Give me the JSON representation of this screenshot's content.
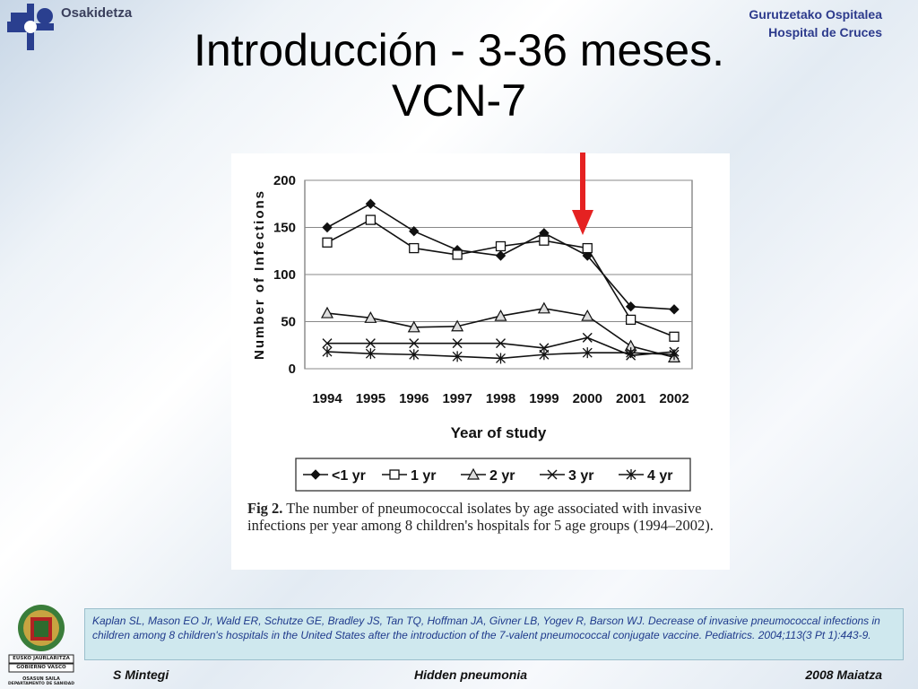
{
  "header": {
    "brand": "Osakidetza",
    "hospital_line1": "Gurutzetako Ospitalea",
    "hospital_line2": "Hospital de Cruces"
  },
  "slide": {
    "title_line1": "Introducción - 3-36 meses.",
    "title_line2": "VCN-7"
  },
  "figure": {
    "caption_label": "Fig 2.",
    "caption_text": "The number of pneumococcal isolates by age associated with invasive infections per year among 8 children's hospitals for 5 age groups (1994–2002)."
  },
  "chart_data": {
    "type": "line",
    "xlabel": "Year of study",
    "ylabel": "Number of Infections",
    "categories": [
      "1994",
      "1995",
      "1996",
      "1997",
      "1998",
      "1999",
      "2000",
      "2001",
      "2002"
    ],
    "yticks": [
      "0",
      "50",
      "100",
      "150",
      "200"
    ],
    "ylim": [
      0,
      200
    ],
    "grid": true,
    "legend_position": "bottom",
    "series": [
      {
        "name": "<1 yr",
        "marker": "diamond-filled",
        "values": [
          150,
          175,
          146,
          126,
          120,
          144,
          120,
          66,
          63
        ]
      },
      {
        "name": "1 yr",
        "marker": "square-open",
        "values": [
          134,
          158,
          128,
          121,
          130,
          136,
          128,
          52,
          34
        ]
      },
      {
        "name": "2 yr",
        "marker": "triangle-open",
        "values": [
          59,
          54,
          44,
          45,
          56,
          64,
          56,
          24,
          12
        ]
      },
      {
        "name": "3 yr",
        "marker": "x",
        "values": [
          27,
          27,
          27,
          27,
          27,
          22,
          33,
          14,
          18
        ]
      },
      {
        "name": "4 yr",
        "marker": "star",
        "values": [
          18,
          16,
          15,
          13,
          11,
          15,
          17,
          17,
          15
        ]
      }
    ],
    "annotation": {
      "type": "arrow",
      "color": "#e52222",
      "points_to_category": "2000"
    }
  },
  "reference": {
    "text": "Kaplan SL, Mason EO Jr, Wald ER, Schutze GE, Bradley JS, Tan TQ, Hoffman JA, Givner LB, Yogev R, Barson WJ. Decrease of invasive pneumococcal infections in children among 8 children's hospitals in the United States after the introduction of the 7-valent pneumococcal conjugate vaccine. Pediatrics. 2004;113(3 Pt 1):443-9."
  },
  "seal": {
    "line1": "EUSKO JAURLARITZA",
    "line2": "GOBIERNO VASCO",
    "line3": "OSASUN SAILA",
    "line4": "DEPARTAMENTO DE SANIDAD"
  },
  "footer": {
    "author": "S Mintegi",
    "topic": "Hidden pneumonia",
    "date": "2008 Maiatza"
  }
}
